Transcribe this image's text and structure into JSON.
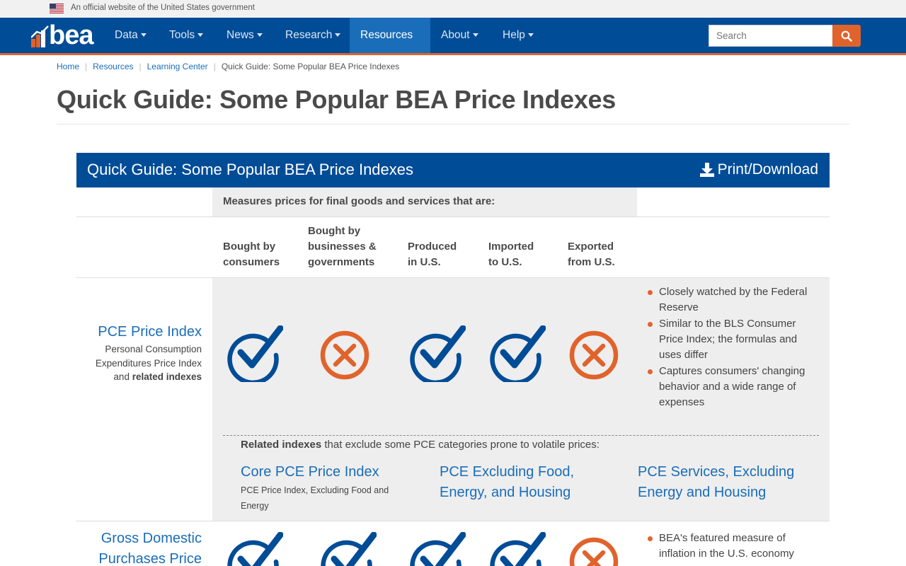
{
  "gov_banner": {
    "text": "An official website of the United States government"
  },
  "logo": {
    "word": "bea"
  },
  "nav": {
    "items": [
      {
        "label": "Data"
      },
      {
        "label": "Tools"
      },
      {
        "label": "News"
      },
      {
        "label": "Research"
      },
      {
        "label": "Resources"
      },
      {
        "label": "About"
      },
      {
        "label": "Help"
      }
    ],
    "active_item": "Resources"
  },
  "search": {
    "placeholder": "Search"
  },
  "breadcrumb": [
    "Home",
    "Resources",
    "Learning Center",
    "Quick Guide: Some Popular BEA Price Indexes"
  ],
  "page_title": "Quick Guide: Some Popular BEA Price Indexes",
  "guide": {
    "title": "Quick Guide: Some Popular BEA Price Indexes",
    "print_label": "Print/Download",
    "measures_label": "Measures prices for final goods and services that are:",
    "columns": [
      {
        "line1": "Bought by",
        "line2": "consumers",
        "line0": ""
      },
      {
        "line0": "Bought by",
        "line1": "businesses &",
        "line2": "governments"
      },
      {
        "line0": "",
        "line1": "Produced",
        "line2": "in U.S."
      },
      {
        "line0": "",
        "line1": "Imported",
        "line2": "to U.S."
      },
      {
        "line0": "",
        "line1": "Exported",
        "line2": "from U.S."
      }
    ],
    "rows": [
      {
        "name": "PCE Price Index",
        "desc_prefix": "Personal Consumption Expenditures Price Index and ",
        "desc_bold": "related indexes",
        "marks": [
          "check",
          "cross",
          "check",
          "check",
          "cross"
        ],
        "bullets": [
          "Closely watched by the Federal Reserve",
          "Similar to the BLS Consumer Price Index; the formulas and uses differ",
          "Captures consumers' changing behavior and a wide range of expenses"
        ],
        "related_intro_bold": "Related indexes",
        "related_intro_rest": " that exclude some PCE categories prone to volatile prices:",
        "related": [
          {
            "name": "Core PCE Price Index",
            "desc": "PCE Price Index, Excluding Food and Energy"
          },
          {
            "name": "PCE Excluding Food, Energy, and Housing",
            "desc": ""
          },
          {
            "name": "PCE Services, Excluding Energy and Housing",
            "desc": ""
          }
        ]
      },
      {
        "name": "Gross Domestic Purchases Price",
        "marks": [
          "check",
          "check",
          "check",
          "check",
          "cross"
        ],
        "bullets": [
          "BEA's featured measure of inflation in the U.S. economy"
        ]
      }
    ]
  },
  "colors": {
    "navy": "#004c97",
    "orange": "#e0632c",
    "link": "#1a6db8"
  }
}
